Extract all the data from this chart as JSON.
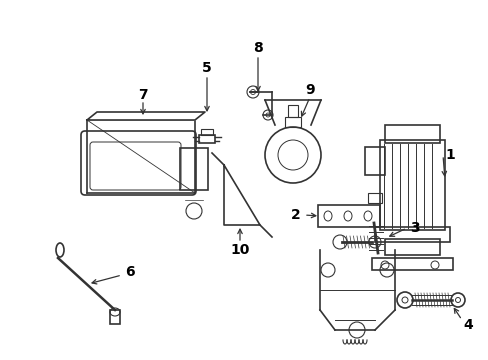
{
  "bg_color": "#ffffff",
  "line_color": "#333333",
  "label_color": "#000000",
  "figsize": [
    4.89,
    3.6
  ],
  "dpi": 100,
  "xlim": [
    0,
    489
  ],
  "ylim": [
    0,
    360
  ]
}
